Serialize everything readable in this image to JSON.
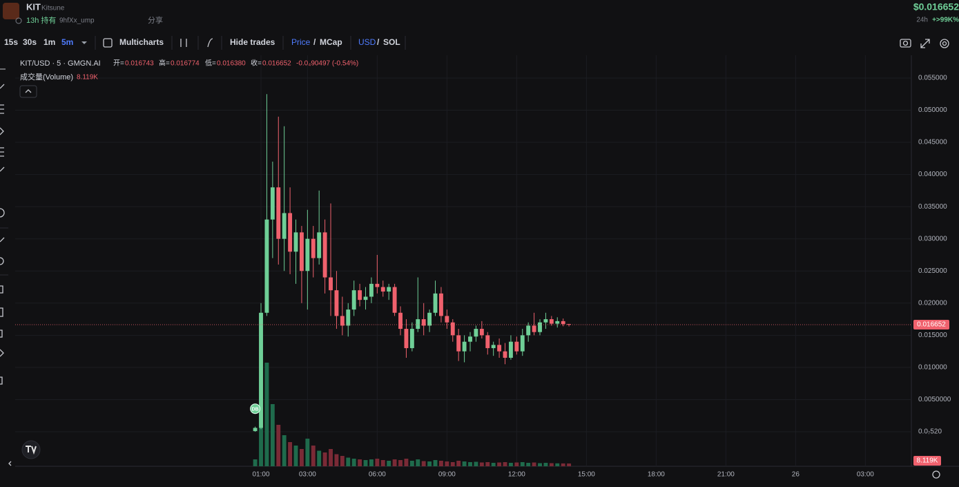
{
  "header": {
    "symbol": "KIT",
    "name": "Kitsune",
    "hold": "13h 持有",
    "address": "9hfXx_ump",
    "share": "分享",
    "price": "$0.016652",
    "change_period": "24h",
    "change": "+>99K%"
  },
  "toolbar": {
    "intervals": [
      "15s",
      "30s",
      "1m",
      "5m"
    ],
    "multicharts": "Multicharts",
    "hide_trades": "Hide trades",
    "price": "Price",
    "mcap": "MCap",
    "usd": "USD",
    "sol": "SOL",
    "separator": "/"
  },
  "legend": {
    "pair": "KIT/USD · 5 · GMGN.AI",
    "open_label": "开=",
    "open": "0.016743",
    "high_label": "高=",
    "high": "0.016774",
    "low_label": "低=",
    "low": "0.016380",
    "close_label": "收=",
    "close": "0.016652",
    "change": "-0.0₄90497 (-0.54%)",
    "volume_label": "成交量(Volume)"
  },
  "chart_data": {
    "type": "candlestick",
    "x": [
      0.75,
      1,
      1.25,
      1.5,
      1.75,
      2,
      2.25,
      2.5,
      2.75,
      3,
      3.25,
      3.5,
      3.75,
      4,
      4.25,
      4.5,
      4.75,
      5,
      5.25,
      5.5,
      5.75,
      6,
      6.25,
      6.5,
      6.75,
      7,
      7.25,
      7.5,
      7.75,
      8,
      8.25,
      8.5,
      8.75,
      9,
      9.25,
      9.5,
      9.75,
      10,
      10.25,
      10.5,
      10.75,
      11,
      11.25,
      11.5,
      11.75,
      12,
      12.25,
      12.5,
      12.75,
      13,
      13.25,
      13.5,
      13.75,
      14,
      14.25
    ],
    "open": [
      0.0001,
      0.0006,
      0.0185,
      0.033,
      0.038,
      0.03,
      0.034,
      0.028,
      0.031,
      0.025,
      0.03,
      0.027,
      0.031,
      0.024,
      0.022,
      0.018,
      0.0165,
      0.019,
      0.022,
      0.0205,
      0.021,
      0.023,
      0.0225,
      0.0218,
      0.0225,
      0.0185,
      0.016,
      0.013,
      0.016,
      0.0175,
      0.0165,
      0.0185,
      0.0215,
      0.018,
      0.017,
      0.015,
      0.0125,
      0.014,
      0.0148,
      0.016,
      0.015,
      0.013,
      0.0135,
      0.0125,
      0.0115,
      0.014,
      0.0125,
      0.015,
      0.0165,
      0.0155,
      0.017,
      0.0175,
      0.0168,
      0.0172,
      0.016743
    ],
    "high": [
      0.0008,
      0.02,
      0.0525,
      0.042,
      0.049,
      0.0475,
      0.038,
      0.033,
      0.032,
      0.0345,
      0.032,
      0.0375,
      0.033,
      0.0355,
      0.025,
      0.021,
      0.02,
      0.0235,
      0.023,
      0.0225,
      0.024,
      0.0275,
      0.0235,
      0.023,
      0.023,
      0.0195,
      0.0175,
      0.017,
      0.024,
      0.02,
      0.019,
      0.0235,
      0.0225,
      0.019,
      0.0175,
      0.016,
      0.015,
      0.0155,
      0.0165,
      0.0172,
      0.0155,
      0.014,
      0.0145,
      0.0138,
      0.015,
      0.0148,
      0.016,
      0.017,
      0.0185,
      0.0175,
      0.0185,
      0.018,
      0.0178,
      0.0176,
      0.016774
    ],
    "low": [
      0,
      0.0004,
      0.018,
      0.027,
      0.026,
      0.025,
      0.0245,
      0.023,
      0.02,
      0.019,
      0.024,
      0.026,
      0.0215,
      0.018,
      0.016,
      0.015,
      0.0148,
      0.018,
      0.0195,
      0.019,
      0.02,
      0.0215,
      0.021,
      0.0205,
      0.018,
      0.015,
      0.0115,
      0.0125,
      0.0155,
      0.015,
      0.0155,
      0.018,
      0.017,
      0.016,
      0.014,
      0.011,
      0.0108,
      0.0125,
      0.014,
      0.0145,
      0.012,
      0.0118,
      0.0115,
      0.0105,
      0.0112,
      0.012,
      0.0118,
      0.014,
      0.015,
      0.015,
      0.016,
      0.0165,
      0.0162,
      0.0164,
      0.01638
    ],
    "close": [
      0.0006,
      0.0185,
      0.033,
      0.038,
      0.03,
      0.034,
      0.028,
      0.031,
      0.025,
      0.03,
      0.027,
      0.031,
      0.024,
      0.022,
      0.018,
      0.0165,
      0.019,
      0.022,
      0.0205,
      0.021,
      0.023,
      0.0225,
      0.0218,
      0.0225,
      0.0185,
      0.016,
      0.013,
      0.016,
      0.0175,
      0.0165,
      0.0185,
      0.0215,
      0.018,
      0.017,
      0.015,
      0.0125,
      0.014,
      0.0148,
      0.016,
      0.015,
      0.013,
      0.0135,
      0.0125,
      0.0115,
      0.014,
      0.0125,
      0.015,
      0.0165,
      0.0155,
      0.017,
      0.0175,
      0.0168,
      0.0172,
      0.016743,
      0.016652
    ],
    "volume": [
      20000,
      250000,
      300000,
      180000,
      120000,
      90000,
      70000,
      60000,
      50000,
      80000,
      60000,
      45000,
      40000,
      50000,
      35000,
      30000,
      25000,
      22000,
      20000,
      18000,
      20000,
      22000,
      18000,
      16000,
      20000,
      18000,
      22000,
      16000,
      20000,
      15000,
      14000,
      18000,
      16000,
      14000,
      12000,
      16000,
      14000,
      12000,
      13000,
      11000,
      12000,
      10000,
      11000,
      12000,
      10000,
      11000,
      12000,
      10000,
      11000,
      9000,
      10000,
      9000,
      8500,
      8300,
      8119
    ],
    "last_volume_label": "8.119K",
    "xlim": [
      -9.575,
      28.98
    ],
    "xticks": [
      {
        "value": 1,
        "label": "01:00"
      },
      {
        "value": 3,
        "label": "03:00"
      },
      {
        "value": 6,
        "label": "06:00"
      },
      {
        "value": 9,
        "label": "09:00"
      },
      {
        "value": 12,
        "label": "12:00"
      },
      {
        "value": 15,
        "label": "15:00"
      },
      {
        "value": 18,
        "label": "18:00"
      },
      {
        "value": 21,
        "label": "21:00"
      },
      {
        "value": 24,
        "label": "26"
      },
      {
        "value": 27,
        "label": "03:00"
      }
    ],
    "ylim": [
      -0.00537,
      0.05854
    ],
    "yticks": [
      {
        "value": 5.2e-08,
        "label": "0.0₇520"
      },
      {
        "value": 0.005,
        "label": "0.0050000"
      },
      {
        "value": 0.01,
        "label": "0.010000"
      },
      {
        "value": 0.015,
        "label": "0.015000"
      },
      {
        "value": 0.02,
        "label": "0.020000"
      },
      {
        "value": 0.025,
        "label": "0.025000"
      },
      {
        "value": 0.03,
        "label": "0.030000"
      },
      {
        "value": 0.035,
        "label": "0.035000"
      },
      {
        "value": 0.04,
        "label": "0.040000"
      },
      {
        "value": 0.045,
        "label": "0.045000"
      },
      {
        "value": 0.05,
        "label": "0.050000"
      },
      {
        "value": 0.055,
        "label": "0.055000"
      }
    ],
    "volume_lim": [
      0,
      600000
    ],
    "grid": true,
    "up_color": "#6fcf97",
    "down_color": "#f0616d",
    "volume_up_color": "#1f6b4c",
    "volume_down_color": "#7a2a36",
    "marker": "DB"
  }
}
